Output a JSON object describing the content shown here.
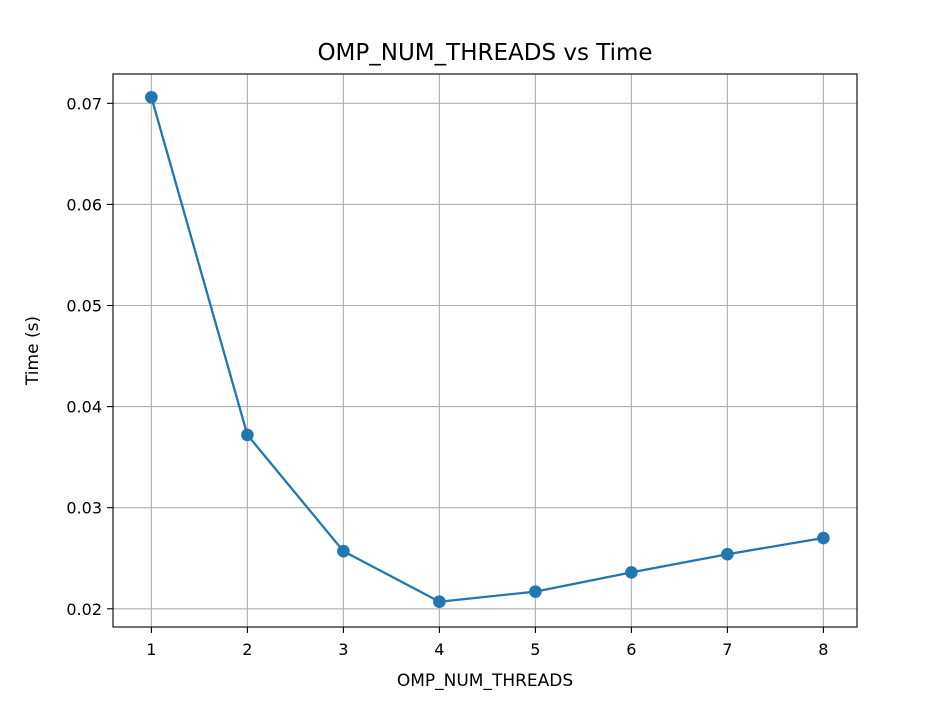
{
  "chart_data": {
    "type": "line",
    "title": "OMP_NUM_THREADS vs Time",
    "xlabel": "OMP_NUM_THREADS",
    "ylabel": "Time (s)",
    "x": [
      1,
      2,
      3,
      4,
      5,
      6,
      7,
      8
    ],
    "series": [
      {
        "values": [
          0.0706,
          0.0372,
          0.0257,
          0.0207,
          0.0217,
          0.0236,
          0.0254,
          0.027
        ],
        "color": "#1f77b4",
        "marker": "circle"
      }
    ],
    "xticks": [
      1,
      2,
      3,
      4,
      5,
      6,
      7,
      8
    ],
    "xtick_labels": [
      "1",
      "2",
      "3",
      "4",
      "5",
      "6",
      "7",
      "8"
    ],
    "yticks": [
      0.02,
      0.03,
      0.04,
      0.05,
      0.06,
      0.07
    ],
    "ytick_labels": [
      "0.02",
      "0.03",
      "0.04",
      "0.05",
      "0.06",
      "0.07"
    ],
    "xlim": [
      0.6,
      8.35
    ],
    "ylim": [
      0.0182,
      0.0729
    ],
    "grid": true,
    "colors": {
      "line": "#1f77b4",
      "grid": "#b0b0b0",
      "axes": "#000000"
    }
  }
}
